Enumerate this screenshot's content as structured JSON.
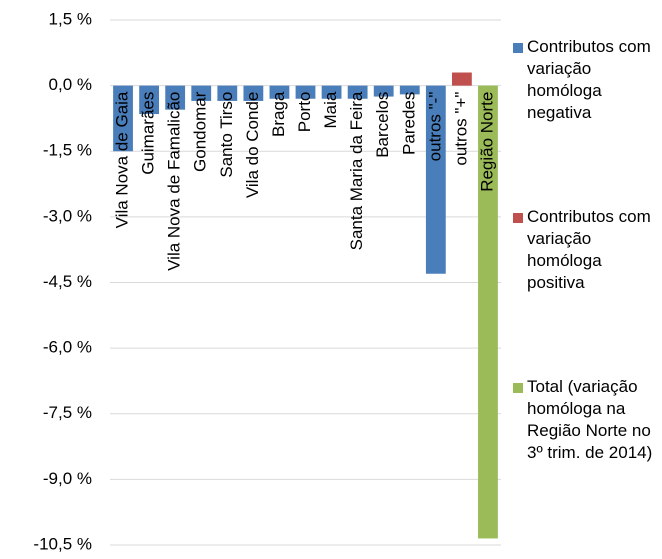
{
  "chart_data": {
    "type": "bar",
    "categories": [
      "Vila Nova de Gaia",
      "Guimarães",
      "Vila Nova de Famalicão",
      "Gondomar",
      "Santo Tirso",
      "Vila do Conde",
      "Braga",
      "Porto",
      "Maia",
      "Santa Maria da Feira",
      "Barcelos",
      "Paredes",
      "outros \"-\"",
      "outros \"+\"",
      "Região Norte"
    ],
    "series": [
      {
        "name": "Contributos com variação homóloga negativa",
        "color": "#4a7ebb",
        "values": [
          -1.5,
          -0.65,
          -0.55,
          -0.35,
          -0.35,
          -0.35,
          -0.3,
          -0.3,
          -0.3,
          -0.3,
          -0.25,
          -0.2,
          -4.3,
          null,
          null
        ]
      },
      {
        "name": "Contributos com variação homóloga positiva",
        "color": "#c0504d",
        "values": [
          null,
          null,
          null,
          null,
          null,
          null,
          null,
          null,
          null,
          null,
          null,
          null,
          null,
          0.3,
          null
        ]
      },
      {
        "name": "Total (variação homóloga na Região Norte no 3º trim. de 2014)",
        "color": "#9bbb59",
        "values": [
          null,
          null,
          null,
          null,
          null,
          null,
          null,
          null,
          null,
          null,
          null,
          null,
          null,
          null,
          -10.35
        ]
      }
    ],
    "ylim": [
      -10.5,
      1.5
    ],
    "yticks": [
      {
        "value": 1.5,
        "label": "1,5 %"
      },
      {
        "value": 0,
        "label": "0,0 %"
      },
      {
        "value": -1.5,
        "label": "-1,5 %"
      },
      {
        "value": -3,
        "label": "-3,0 %"
      },
      {
        "value": -4.5,
        "label": "-4,5 %"
      },
      {
        "value": -6,
        "label": "-6,0 %"
      },
      {
        "value": -7.5,
        "label": "-7,5 %"
      },
      {
        "value": -9,
        "label": "-9,0 %"
      },
      {
        "value": -10.5,
        "label": "-10,5 %"
      }
    ],
    "grid": true,
    "legend": "right"
  }
}
